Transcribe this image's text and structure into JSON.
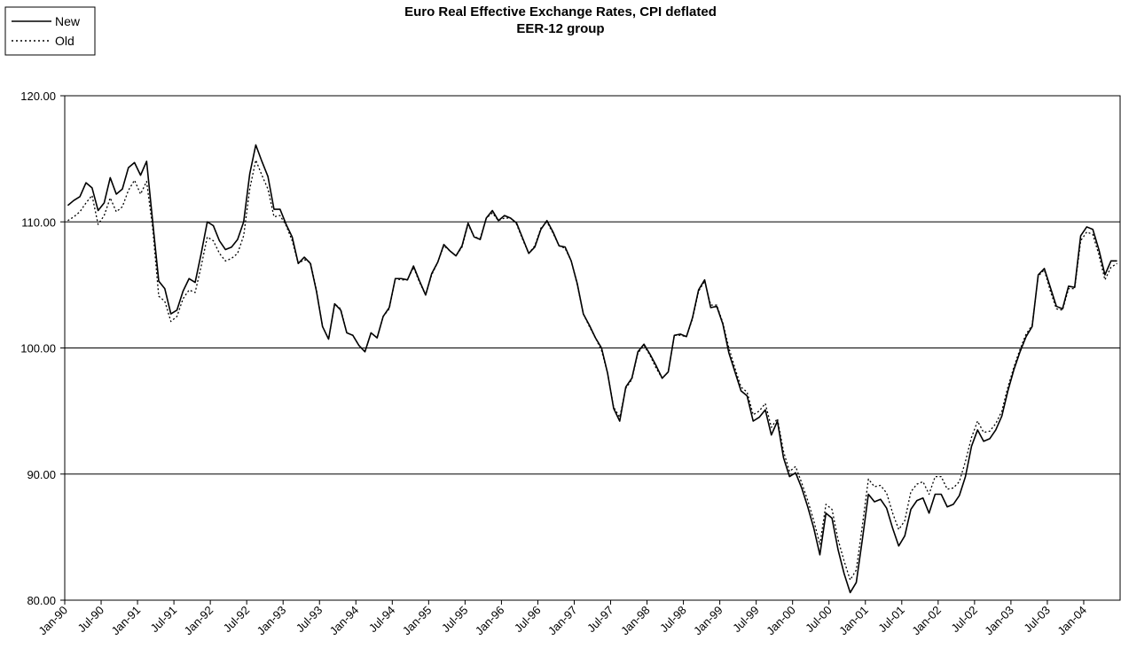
{
  "chart_data": {
    "type": "line",
    "title": "Euro Real Effective Exchange Rates, CPI deflated",
    "subtitle": "EER-12 group",
    "xlabel": "",
    "ylabel": "",
    "ylim": [
      80,
      120
    ],
    "y_ticks": [
      "80.00",
      "90.00",
      "100.00",
      "110.00",
      "120.00"
    ],
    "grid": "horizontal",
    "legend_position": "top-left",
    "x_start": "Jan-90",
    "x_end": "Dec-04",
    "x_tick_labels": [
      "Jan-90",
      "Jul-90",
      "Jan-91",
      "Jul-91",
      "Jan-92",
      "Jul-92",
      "Jan-93",
      "Jul-93",
      "Jan-94",
      "Jul-94",
      "Jan-95",
      "Jul-95",
      "Jan-96",
      "Jul-96",
      "Jan-97",
      "Jul-97",
      "Jan-98",
      "Jul-98",
      "Jan-99",
      "Jul-99",
      "Jan-00",
      "Jul-00",
      "Jan-01",
      "Jul-01",
      "Jan-02",
      "Jul-02",
      "Jan-03",
      "Jul-03",
      "Jan-04"
    ],
    "series": [
      {
        "name": "New",
        "style": "solid",
        "color": "#000000",
        "values": [
          111.3,
          111.7,
          112.0,
          113.1,
          112.7,
          110.9,
          111.5,
          113.5,
          112.2,
          112.6,
          114.3,
          114.7,
          113.7,
          114.8,
          110.0,
          105.3,
          104.7,
          102.7,
          103.0,
          104.5,
          105.5,
          105.2,
          107.5,
          110.0,
          109.7,
          108.5,
          107.8,
          108.0,
          108.6,
          110.0,
          113.8,
          116.1,
          114.8,
          113.6,
          111.0,
          111.0,
          109.8,
          108.8,
          106.7,
          107.2,
          106.7,
          104.5,
          101.7,
          100.7,
          103.5,
          103.0,
          101.2,
          101.0,
          100.2,
          99.7,
          101.2,
          100.8,
          102.5,
          103.2,
          105.5,
          105.5,
          105.4,
          106.5,
          105.3,
          104.2,
          105.9,
          106.8,
          108.2,
          107.7,
          107.3,
          108.1,
          109.9,
          108.8,
          108.6,
          110.3,
          110.9,
          110.1,
          110.5,
          110.3,
          109.9,
          108.7,
          107.5,
          108.0,
          109.4,
          110.1,
          109.2,
          108.1,
          108.0,
          106.9,
          105.1,
          102.7,
          101.8,
          100.8,
          100.0,
          98.0,
          95.2,
          94.2,
          96.9,
          97.6,
          99.7,
          100.3,
          99.5,
          98.6,
          97.6,
          98.1,
          101.0,
          101.1,
          100.9,
          102.4,
          104.6,
          105.4,
          103.2,
          103.3,
          101.9,
          99.6,
          98.1,
          96.6,
          96.2,
          94.2,
          94.5,
          95.1,
          93.1,
          94.2,
          91.3,
          89.8,
          90.1,
          88.9,
          87.4,
          85.7,
          83.6,
          86.9,
          86.5,
          84.0,
          82.1,
          80.6,
          81.4,
          84.8,
          88.4,
          87.8,
          88.0,
          87.3,
          85.7,
          84.3,
          85.1,
          87.2,
          87.9,
          88.1,
          86.9,
          88.4,
          88.4,
          87.4,
          87.6,
          88.3,
          89.8,
          92.2,
          93.5,
          92.6,
          92.8,
          93.5,
          94.6,
          96.6,
          98.3,
          99.7,
          100.9,
          101.7,
          105.8,
          106.3,
          104.8,
          103.3,
          103.1,
          104.9,
          104.8,
          108.9,
          109.6,
          109.4,
          107.8,
          105.8,
          106.9,
          106.9
        ]
      },
      {
        "name": "Old",
        "style": "dotted",
        "color": "#000000",
        "values": [
          110.1,
          110.4,
          110.8,
          111.5,
          112.1,
          109.8,
          110.5,
          111.9,
          110.8,
          111.2,
          112.5,
          113.3,
          112.2,
          113.2,
          109.5,
          104.1,
          103.7,
          102.1,
          102.5,
          103.9,
          104.6,
          104.4,
          106.5,
          108.8,
          108.5,
          107.5,
          106.9,
          107.1,
          107.5,
          108.9,
          112.6,
          114.9,
          113.7,
          112.6,
          110.4,
          110.5,
          109.7,
          108.5,
          106.7,
          107.0,
          106.8,
          104.6,
          101.7,
          100.7,
          103.5,
          103.1,
          101.2,
          101.0,
          100.2,
          99.7,
          101.2,
          100.8,
          102.5,
          103.1,
          105.5,
          105.4,
          105.4,
          106.4,
          105.2,
          104.2,
          105.8,
          106.8,
          108.1,
          107.7,
          107.3,
          108.0,
          109.8,
          108.8,
          108.7,
          110.3,
          110.7,
          110.1,
          110.3,
          110.3,
          109.8,
          108.6,
          107.5,
          108.1,
          109.5,
          110.0,
          109.1,
          108.1,
          107.9,
          106.9,
          105.0,
          102.7,
          101.7,
          100.8,
          99.8,
          98.0,
          95.3,
          94.5,
          96.8,
          97.5,
          99.6,
          100.2,
          99.4,
          98.4,
          97.6,
          98.1,
          101.0,
          101.0,
          100.9,
          102.3,
          104.5,
          105.3,
          103.4,
          103.4,
          102.0,
          100.0,
          98.4,
          96.9,
          96.5,
          94.7,
          95.0,
          95.6,
          93.7,
          94.4,
          91.8,
          90.2,
          90.6,
          89.3,
          87.9,
          86.3,
          84.4,
          87.6,
          87.2,
          84.8,
          83.1,
          81.6,
          82.4,
          85.9,
          89.6,
          89.0,
          89.1,
          88.5,
          86.9,
          85.6,
          86.3,
          88.6,
          89.2,
          89.4,
          88.4,
          89.8,
          89.8,
          88.8,
          88.9,
          89.4,
          91.0,
          92.9,
          94.2,
          93.3,
          93.4,
          94.0,
          95.0,
          96.9,
          98.5,
          99.9,
          101.1,
          101.8,
          105.7,
          106.2,
          104.5,
          103.1,
          103.0,
          104.7,
          104.7,
          108.5,
          109.2,
          109.0,
          107.4,
          105.4,
          106.4,
          106.7
        ]
      }
    ]
  }
}
